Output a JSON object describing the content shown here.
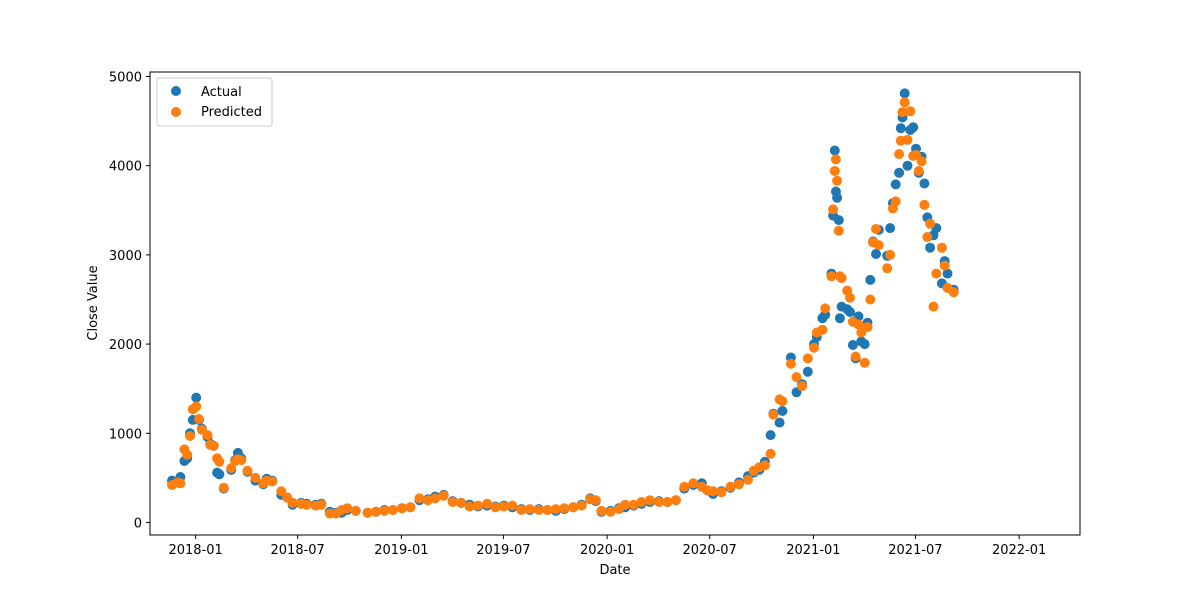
{
  "chart_data": {
    "type": "scatter",
    "title": "",
    "xlabel": "Date",
    "ylabel": "Close Value",
    "x_range": [
      "2017-10-12",
      "2022-04-19"
    ],
    "ylim": [
      -140,
      5050
    ],
    "x_ticks": [
      "2018-01",
      "2018-07",
      "2019-01",
      "2019-07",
      "2020-01",
      "2020-07",
      "2021-01",
      "2021-07",
      "2022-01"
    ],
    "y_ticks": [
      0,
      1000,
      2000,
      3000,
      4000,
      5000
    ],
    "legend_position": "upper-left",
    "grid": false,
    "series": [
      {
        "name": "Actual",
        "color": "#1f77b4",
        "points": [
          [
            "2017-11-20",
            470
          ],
          [
            "2017-11-30",
            450
          ],
          [
            "2017-12-05",
            510
          ],
          [
            "2017-12-12",
            690
          ],
          [
            "2017-12-17",
            720
          ],
          [
            "2017-12-22",
            1000
          ],
          [
            "2017-12-27",
            1150
          ],
          [
            "2018-01-02",
            1400
          ],
          [
            "2018-01-07",
            1150
          ],
          [
            "2018-01-12",
            1050
          ],
          [
            "2018-01-22",
            960
          ],
          [
            "2018-01-27",
            880
          ],
          [
            "2018-02-02",
            860
          ],
          [
            "2018-02-08",
            560
          ],
          [
            "2018-02-12",
            540
          ],
          [
            "2018-02-20",
            380
          ],
          [
            "2018-03-05",
            590
          ],
          [
            "2018-03-12",
            700
          ],
          [
            "2018-03-17",
            780
          ],
          [
            "2018-03-23",
            720
          ],
          [
            "2018-04-03",
            570
          ],
          [
            "2018-04-17",
            470
          ],
          [
            "2018-05-01",
            430
          ],
          [
            "2018-05-07",
            490
          ],
          [
            "2018-05-17",
            470
          ],
          [
            "2018-06-02",
            310
          ],
          [
            "2018-06-12",
            280
          ],
          [
            "2018-06-22",
            200
          ],
          [
            "2018-07-07",
            220
          ],
          [
            "2018-07-17",
            210
          ],
          [
            "2018-08-02",
            200
          ],
          [
            "2018-08-12",
            210
          ],
          [
            "2018-08-27",
            120
          ],
          [
            "2018-09-07",
            110
          ],
          [
            "2018-09-17",
            110
          ],
          [
            "2018-09-27",
            140
          ],
          [
            "2018-10-12",
            130
          ],
          [
            "2018-11-02",
            110
          ],
          [
            "2018-11-17",
            120
          ],
          [
            "2018-12-02",
            140
          ],
          [
            "2018-12-17",
            140
          ],
          [
            "2019-01-02",
            160
          ],
          [
            "2019-01-17",
            170
          ],
          [
            "2019-02-02",
            250
          ],
          [
            "2019-02-17",
            260
          ],
          [
            "2019-03-02",
            290
          ],
          [
            "2019-03-17",
            310
          ],
          [
            "2019-04-02",
            240
          ],
          [
            "2019-04-17",
            220
          ],
          [
            "2019-05-02",
            200
          ],
          [
            "2019-05-17",
            180
          ],
          [
            "2019-06-02",
            190
          ],
          [
            "2019-06-17",
            180
          ],
          [
            "2019-07-02",
            190
          ],
          [
            "2019-07-17",
            170
          ],
          [
            "2019-08-02",
            150
          ],
          [
            "2019-08-17",
            140
          ],
          [
            "2019-09-02",
            150
          ],
          [
            "2019-09-17",
            140
          ],
          [
            "2019-10-02",
            130
          ],
          [
            "2019-10-17",
            150
          ],
          [
            "2019-11-02",
            170
          ],
          [
            "2019-11-17",
            200
          ],
          [
            "2019-12-02",
            270
          ],
          [
            "2019-12-12",
            240
          ],
          [
            "2019-12-22",
            120
          ],
          [
            "2020-01-07",
            130
          ],
          [
            "2020-01-22",
            160
          ],
          [
            "2020-02-02",
            170
          ],
          [
            "2020-02-17",
            190
          ],
          [
            "2020-03-02",
            210
          ],
          [
            "2020-03-17",
            230
          ],
          [
            "2020-04-02",
            240
          ],
          [
            "2020-04-17",
            230
          ],
          [
            "2020-05-02",
            250
          ],
          [
            "2020-05-17",
            380
          ],
          [
            "2020-06-02",
            420
          ],
          [
            "2020-06-17",
            440
          ],
          [
            "2020-06-27",
            360
          ],
          [
            "2020-07-07",
            320
          ],
          [
            "2020-07-22",
            350
          ],
          [
            "2020-08-07",
            390
          ],
          [
            "2020-08-22",
            450
          ],
          [
            "2020-09-07",
            520
          ],
          [
            "2020-09-17",
            560
          ],
          [
            "2020-09-27",
            590
          ],
          [
            "2020-10-07",
            680
          ],
          [
            "2020-10-17",
            980
          ],
          [
            "2020-10-22",
            1220
          ],
          [
            "2020-11-02",
            1120
          ],
          [
            "2020-11-07",
            1250
          ],
          [
            "2020-11-22",
            1850
          ],
          [
            "2020-12-02",
            1460
          ],
          [
            "2020-12-12",
            1550
          ],
          [
            "2020-12-22",
            1690
          ],
          [
            "2021-01-02",
            2000
          ],
          [
            "2021-01-07",
            2080
          ],
          [
            "2021-01-17",
            2290
          ],
          [
            "2021-01-22",
            2330
          ],
          [
            "2021-02-02",
            2790
          ],
          [
            "2021-02-05",
            3440
          ],
          [
            "2021-02-08",
            4170
          ],
          [
            "2021-02-10",
            3710
          ],
          [
            "2021-02-12",
            3640
          ],
          [
            "2021-02-15",
            3390
          ],
          [
            "2021-02-17",
            2290
          ],
          [
            "2021-02-20",
            2420
          ],
          [
            "2021-03-02",
            2390
          ],
          [
            "2021-03-07",
            2360
          ],
          [
            "2021-03-12",
            1990
          ],
          [
            "2021-03-17",
            1840
          ],
          [
            "2021-03-22",
            2310
          ],
          [
            "2021-03-27",
            2030
          ],
          [
            "2021-04-02",
            2000
          ],
          [
            "2021-04-07",
            2240
          ],
          [
            "2021-04-12",
            2720
          ],
          [
            "2021-04-17",
            3150
          ],
          [
            "2021-04-22",
            3010
          ],
          [
            "2021-04-27",
            3280
          ],
          [
            "2021-05-12",
            2990
          ],
          [
            "2021-05-17",
            3300
          ],
          [
            "2021-05-22",
            3580
          ],
          [
            "2021-05-27",
            3790
          ],
          [
            "2021-06-02",
            3920
          ],
          [
            "2021-06-05",
            4420
          ],
          [
            "2021-06-08",
            4540
          ],
          [
            "2021-06-12",
            4810
          ],
          [
            "2021-06-17",
            4000
          ],
          [
            "2021-06-22",
            4400
          ],
          [
            "2021-06-27",
            4430
          ],
          [
            "2021-07-02",
            4190
          ],
          [
            "2021-07-07",
            3920
          ],
          [
            "2021-07-12",
            4100
          ],
          [
            "2021-07-17",
            3800
          ],
          [
            "2021-07-22",
            3420
          ],
          [
            "2021-07-27",
            3080
          ],
          [
            "2021-08-02",
            3220
          ],
          [
            "2021-08-07",
            3300
          ],
          [
            "2021-08-17",
            2680
          ],
          [
            "2021-08-22",
            2930
          ],
          [
            "2021-08-27",
            2790
          ],
          [
            "2021-09-07",
            2610
          ]
        ]
      },
      {
        "name": "Predicted",
        "color": "#ff7f0e",
        "points": [
          [
            "2017-11-20",
            420
          ],
          [
            "2017-11-30",
            450
          ],
          [
            "2017-12-05",
            440
          ],
          [
            "2017-12-12",
            820
          ],
          [
            "2017-12-17",
            760
          ],
          [
            "2017-12-22",
            970
          ],
          [
            "2017-12-27",
            1270
          ],
          [
            "2018-01-02",
            1300
          ],
          [
            "2018-01-07",
            1160
          ],
          [
            "2018-01-12",
            1040
          ],
          [
            "2018-01-22",
            980
          ],
          [
            "2018-01-27",
            870
          ],
          [
            "2018-02-02",
            860
          ],
          [
            "2018-02-08",
            720
          ],
          [
            "2018-02-12",
            680
          ],
          [
            "2018-02-20",
            390
          ],
          [
            "2018-03-05",
            610
          ],
          [
            "2018-03-12",
            690
          ],
          [
            "2018-03-17",
            710
          ],
          [
            "2018-03-23",
            700
          ],
          [
            "2018-04-03",
            580
          ],
          [
            "2018-04-17",
            500
          ],
          [
            "2018-05-01",
            440
          ],
          [
            "2018-05-07",
            470
          ],
          [
            "2018-05-17",
            460
          ],
          [
            "2018-06-02",
            350
          ],
          [
            "2018-06-12",
            280
          ],
          [
            "2018-06-22",
            220
          ],
          [
            "2018-07-07",
            210
          ],
          [
            "2018-07-17",
            200
          ],
          [
            "2018-08-02",
            190
          ],
          [
            "2018-08-12",
            200
          ],
          [
            "2018-08-27",
            100
          ],
          [
            "2018-09-07",
            100
          ],
          [
            "2018-09-17",
            140
          ],
          [
            "2018-09-27",
            160
          ],
          [
            "2018-10-12",
            130
          ],
          [
            "2018-11-02",
            110
          ],
          [
            "2018-11-17",
            120
          ],
          [
            "2018-12-02",
            130
          ],
          [
            "2018-12-17",
            140
          ],
          [
            "2019-01-02",
            160
          ],
          [
            "2019-01-17",
            170
          ],
          [
            "2019-02-02",
            270
          ],
          [
            "2019-02-17",
            250
          ],
          [
            "2019-03-02",
            270
          ],
          [
            "2019-03-17",
            300
          ],
          [
            "2019-04-02",
            230
          ],
          [
            "2019-04-17",
            220
          ],
          [
            "2019-05-02",
            180
          ],
          [
            "2019-05-17",
            190
          ],
          [
            "2019-06-02",
            210
          ],
          [
            "2019-06-17",
            170
          ],
          [
            "2019-07-02",
            180
          ],
          [
            "2019-07-17",
            190
          ],
          [
            "2019-08-02",
            140
          ],
          [
            "2019-08-17",
            150
          ],
          [
            "2019-09-02",
            140
          ],
          [
            "2019-09-17",
            140
          ],
          [
            "2019-10-02",
            150
          ],
          [
            "2019-10-17",
            160
          ],
          [
            "2019-11-02",
            170
          ],
          [
            "2019-11-17",
            190
          ],
          [
            "2019-12-02",
            260
          ],
          [
            "2019-12-12",
            250
          ],
          [
            "2019-12-22",
            130
          ],
          [
            "2020-01-07",
            120
          ],
          [
            "2020-01-22",
            150
          ],
          [
            "2020-02-02",
            200
          ],
          [
            "2020-02-17",
            200
          ],
          [
            "2020-03-02",
            230
          ],
          [
            "2020-03-17",
            250
          ],
          [
            "2020-04-02",
            230
          ],
          [
            "2020-04-17",
            230
          ],
          [
            "2020-05-02",
            250
          ],
          [
            "2020-05-17",
            400
          ],
          [
            "2020-06-02",
            440
          ],
          [
            "2020-06-17",
            400
          ],
          [
            "2020-06-27",
            360
          ],
          [
            "2020-07-07",
            350
          ],
          [
            "2020-07-22",
            340
          ],
          [
            "2020-08-07",
            400
          ],
          [
            "2020-08-22",
            430
          ],
          [
            "2020-09-07",
            480
          ],
          [
            "2020-09-17",
            580
          ],
          [
            "2020-09-27",
            620
          ],
          [
            "2020-10-07",
            640
          ],
          [
            "2020-10-17",
            770
          ],
          [
            "2020-10-22",
            1210
          ],
          [
            "2020-11-02",
            1380
          ],
          [
            "2020-11-07",
            1360
          ],
          [
            "2020-11-22",
            1780
          ],
          [
            "2020-12-02",
            1630
          ],
          [
            "2020-12-12",
            1530
          ],
          [
            "2020-12-22",
            1840
          ],
          [
            "2021-01-02",
            1960
          ],
          [
            "2021-01-07",
            2130
          ],
          [
            "2021-01-17",
            2160
          ],
          [
            "2021-01-22",
            2400
          ],
          [
            "2021-02-02",
            2760
          ],
          [
            "2021-02-05",
            3510
          ],
          [
            "2021-02-08",
            3940
          ],
          [
            "2021-02-10",
            4070
          ],
          [
            "2021-02-12",
            3830
          ],
          [
            "2021-02-15",
            3270
          ],
          [
            "2021-02-17",
            2760
          ],
          [
            "2021-02-20",
            2740
          ],
          [
            "2021-03-02",
            2600
          ],
          [
            "2021-03-07",
            2520
          ],
          [
            "2021-03-12",
            2250
          ],
          [
            "2021-03-17",
            1860
          ],
          [
            "2021-03-22",
            2220
          ],
          [
            "2021-03-27",
            2130
          ],
          [
            "2021-04-02",
            1790
          ],
          [
            "2021-04-07",
            2190
          ],
          [
            "2021-04-12",
            2500
          ],
          [
            "2021-04-17",
            3140
          ],
          [
            "2021-04-22",
            3290
          ],
          [
            "2021-04-27",
            3110
          ],
          [
            "2021-05-12",
            2850
          ],
          [
            "2021-05-17",
            3000
          ],
          [
            "2021-05-22",
            3520
          ],
          [
            "2021-05-27",
            3600
          ],
          [
            "2021-06-02",
            4130
          ],
          [
            "2021-06-05",
            4280
          ],
          [
            "2021-06-08",
            4600
          ],
          [
            "2021-06-12",
            4710
          ],
          [
            "2021-06-17",
            4290
          ],
          [
            "2021-06-22",
            4610
          ],
          [
            "2021-06-27",
            4110
          ],
          [
            "2021-07-02",
            4120
          ],
          [
            "2021-07-07",
            3940
          ],
          [
            "2021-07-12",
            4050
          ],
          [
            "2021-07-17",
            3560
          ],
          [
            "2021-07-22",
            3200
          ],
          [
            "2021-07-27",
            3350
          ],
          [
            "2021-08-02",
            2420
          ],
          [
            "2021-08-07",
            2790
          ],
          [
            "2021-08-17",
            3080
          ],
          [
            "2021-08-22",
            2880
          ],
          [
            "2021-08-27",
            2630
          ],
          [
            "2021-09-07",
            2580
          ]
        ]
      }
    ]
  }
}
